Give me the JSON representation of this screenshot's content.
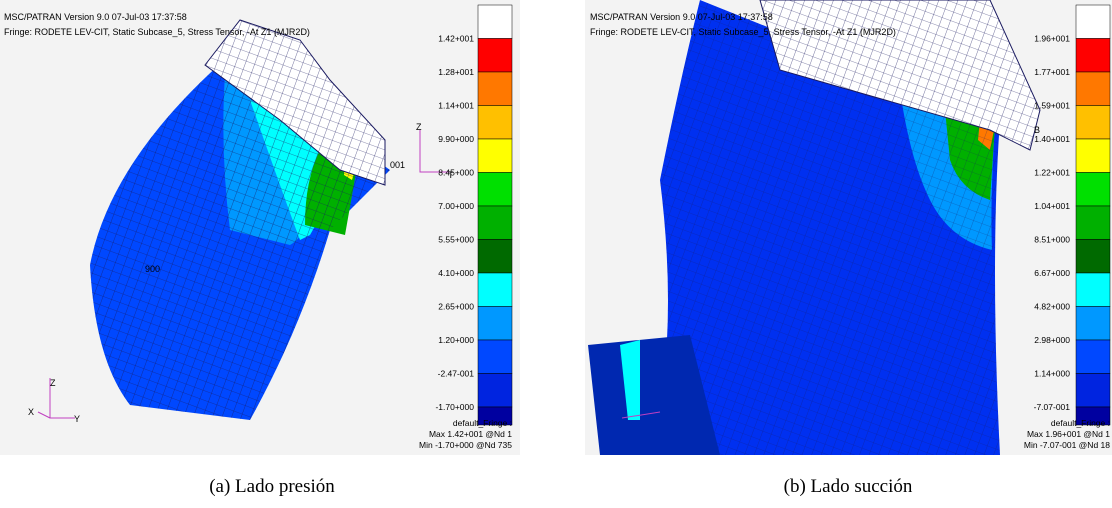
{
  "panels": [
    {
      "header": [
        "MSC/PATRAN Version 9.0 07-Jul-03 17:37:58",
        "Fringe: RODETE LEV-CIT, Static Subcase_5, Stress Tensor, -At Z1 (MJR2D)"
      ],
      "legend": {
        "labels": [
          "1.42+001",
          "1.28+001",
          "1.14+001",
          "9.90+000",
          "8.45+000",
          "7.00+000",
          "5.55+000",
          "4.10+000",
          "2.65+000",
          "1.20+000",
          "-2.47-001",
          "-1.70+000"
        ],
        "colors": [
          "#ffffff",
          "#ff0000",
          "#ff7800",
          "#ffc000",
          "#ffff00",
          "#00e000",
          "#00b000",
          "#006a00",
          "#00ffff",
          "#0098ff",
          "#0048ff",
          "#0024e0",
          "#0000a0"
        ]
      },
      "footer": [
        "default_Fringe :",
        "Max 1.42+001 @Nd 1",
        "Min -1.70+000 @Nd 735"
      ],
      "triad": [
        "Z",
        "X",
        "Y",
        "Z",
        "T",
        "001",
        "900"
      ],
      "caption": "(a) Lado presión"
    },
    {
      "header": [
        "MSC/PATRAN Version 9.0 07-Jul-03 17:37:58",
        "Fringe: RODETE LEV-CIT, Static Subcase_5, Stress Tensor, -At Z1 (MJR2D)"
      ],
      "legend": {
        "labels": [
          "1.96+001",
          "1.77+001",
          "1.59+001",
          "1.40+001",
          "1.22+001",
          "1.04+001",
          "8.51+000",
          "6.67+000",
          "4.82+000",
          "2.98+000",
          "1.14+000",
          "-7.07-001"
        ],
        "colors": [
          "#ffffff",
          "#ff0000",
          "#ff7800",
          "#ffc000",
          "#ffff00",
          "#00e000",
          "#00b000",
          "#006a00",
          "#00ffff",
          "#0098ff",
          "#0048ff",
          "#0024e0",
          "#0000a0"
        ]
      },
      "footer": [
        "default_Fringe :",
        "Max 1.96+001 @Nd 1",
        "Min -7.07-001 @Nd 18"
      ],
      "triad": [
        "B"
      ],
      "caption": "(b) Lado succión"
    }
  ]
}
